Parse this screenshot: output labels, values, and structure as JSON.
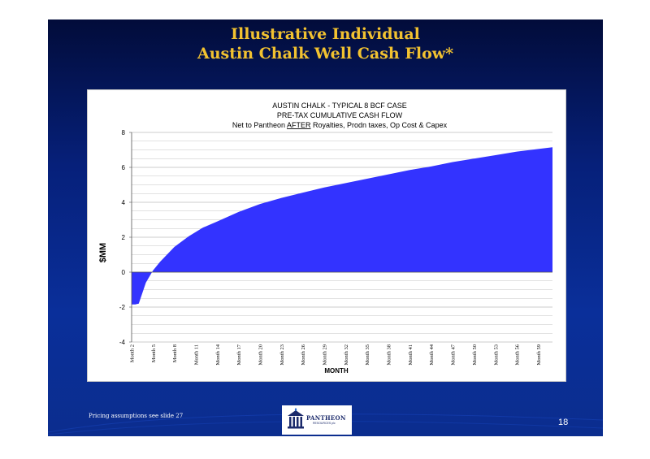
{
  "slide": {
    "title_line1": "Illustrative Individual",
    "title_line2": "Austin Chalk Well Cash Flow*",
    "footnote": "Pricing assumptions see slide 27",
    "page_number": "18",
    "logo_name": "PANTHEON",
    "logo_sub": "RESOURCES plc"
  },
  "colors": {
    "background": "#0a2f9a",
    "title": "#f2c230",
    "area_fill": "#3333ff"
  },
  "chart_data": {
    "type": "area",
    "title_lines": [
      "AUSTIN CHALK  - TYPICAL 8 BCF CASE",
      "PRE-TAX CUMULATIVE CASH FLOW"
    ],
    "subtitle_pre": "Net to Pantheon ",
    "subtitle_emph": "AFTER",
    "subtitle_post": " Royalties, Prodn taxes, Op Cost & Capex",
    "xlabel": "MONTH",
    "ylabel": "$MM",
    "ylim": [
      -4,
      8
    ],
    "yticks": [
      -4,
      -2,
      0,
      2,
      4,
      6,
      8
    ],
    "grid": true,
    "legend": "none",
    "x_start": 2,
    "x_end": 61,
    "xtick_labels": [
      "Month 2",
      "Month 5",
      "Month 8",
      "Month 11",
      "Month 14",
      "Month 17",
      "Month 20",
      "Month 23",
      "Month 26",
      "Month 29",
      "Month 32",
      "Month 35",
      "Month 38",
      "Month 41",
      "Month 44",
      "Month 47",
      "Month 50",
      "Month 53",
      "Month 56",
      "Month 59"
    ],
    "x": [
      2,
      2.5,
      3,
      4,
      5,
      6,
      8,
      10,
      12,
      14,
      17,
      20,
      23,
      26,
      29,
      32,
      35,
      38,
      41,
      44,
      47,
      50,
      53,
      56,
      59,
      61
    ],
    "values": [
      -1.85,
      -1.85,
      -1.8,
      -0.6,
      0.1,
      0.6,
      1.45,
      2.05,
      2.55,
      2.9,
      3.45,
      3.9,
      4.25,
      4.55,
      4.85,
      5.1,
      5.35,
      5.6,
      5.85,
      6.05,
      6.3,
      6.5,
      6.7,
      6.9,
      7.05,
      7.15
    ]
  }
}
